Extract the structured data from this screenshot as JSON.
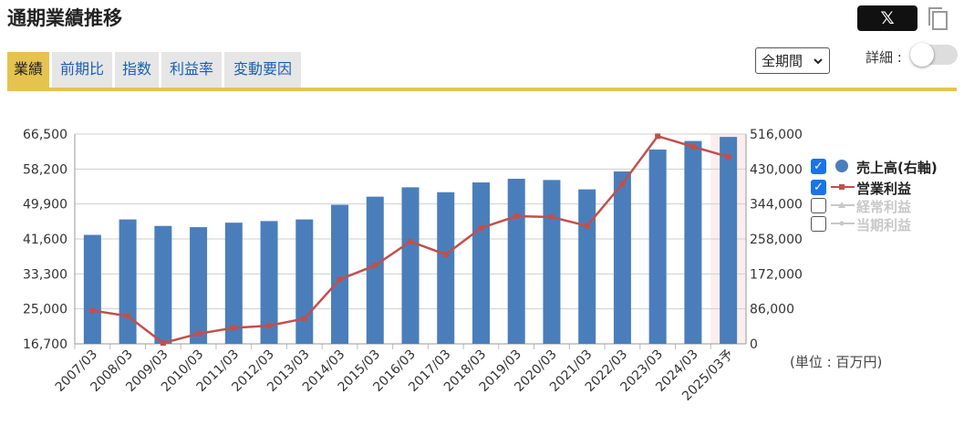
{
  "title": "通期業績推移",
  "share_label": "𝕏",
  "tabs": [
    {
      "label": "業績",
      "active": true
    },
    {
      "label": "前期比",
      "active": false
    },
    {
      "label": "指数",
      "active": false
    },
    {
      "label": "利益率",
      "active": false
    },
    {
      "label": "変動要因",
      "active": false
    }
  ],
  "period_select": {
    "value": "全期間"
  },
  "detail": {
    "label": "詳細 :",
    "enabled": false
  },
  "unit_label": "(単位 : 百万円)",
  "colors": {
    "accent": "#e6c34f",
    "bar": "#4a7ebb",
    "line": "#c0504d",
    "disabled": "#c8c8c8",
    "tab_link": "#1a5fb4"
  },
  "legend": [
    {
      "label": "売上高(右軸)",
      "checked": true,
      "icon": "circle-marker",
      "color": "#4a7ebb"
    },
    {
      "label": "営業利益",
      "checked": true,
      "icon": "line-square-marker",
      "color": "#c0504d"
    },
    {
      "label": "経常利益",
      "checked": false,
      "icon": "line-triangle-marker",
      "color": "#c8c8c8"
    },
    {
      "label": "当期利益",
      "checked": false,
      "icon": "line-marker",
      "color": "#c8c8c8"
    }
  ],
  "chart_data": {
    "type": "bar",
    "categories": [
      "2007/03",
      "2008/03",
      "2009/03",
      "2010/03",
      "2011/03",
      "2012/03",
      "2013/03",
      "2014/03",
      "2015/03",
      "2016/03",
      "2017/03",
      "2018/03",
      "2019/03",
      "2020/03",
      "2021/03",
      "2022/03",
      "2023/03",
      "2024/03",
      "2025/03予"
    ],
    "forecast_index": 18,
    "left_axis": {
      "ticks": [
        "16,700",
        "25,000",
        "33,300",
        "41,600",
        "49,900",
        "58,200",
        "66,500"
      ],
      "min": 16700,
      "max": 66500
    },
    "right_axis": {
      "ticks": [
        "0",
        "86,000",
        "172,000",
        "258,000",
        "344,000",
        "430,000",
        "516,000"
      ],
      "min": 0,
      "max": 516000
    },
    "series": [
      {
        "name": "売上高(右軸)",
        "type": "bar",
        "axis": "right",
        "values": [
          268000,
          306000,
          290000,
          287000,
          298000,
          302000,
          306000,
          342000,
          362000,
          385000,
          373000,
          397000,
          406000,
          403000,
          380000,
          424000,
          478000,
          499000,
          509000
        ]
      },
      {
        "name": "営業利益",
        "type": "line",
        "axis": "left",
        "values": [
          24600,
          23300,
          16900,
          19100,
          20500,
          21000,
          22700,
          32000,
          35300,
          41000,
          37900,
          44200,
          47000,
          46800,
          44700,
          54700,
          66000,
          63500,
          61100
        ]
      }
    ]
  }
}
